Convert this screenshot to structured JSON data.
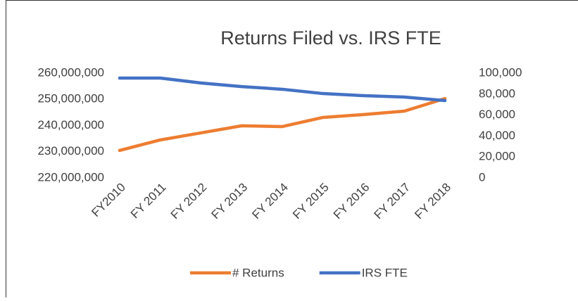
{
  "chart_data": {
    "type": "line",
    "title": "Returns Filed vs. IRS FTE",
    "categories": [
      "FY2010",
      "FY 2011",
      "FY 2012",
      "FY 2013",
      "FY 2014",
      "FY 2015",
      "FY 2016",
      "FY 2017",
      "FY 2018"
    ],
    "series": [
      {
        "name": "# Returns",
        "color": "#ed7d31",
        "values": [
          230500000,
          234500000,
          237200000,
          239900000,
          239600000,
          243100000,
          244200000,
          245500000,
          250300000
        ]
      },
      {
        "name": "IRS FTE",
        "color": "#4472c4",
        "axis": "y2",
        "values": [
          95300,
          95300,
          90600,
          87200,
          84600,
          80500,
          78500,
          77200,
          73800
        ]
      }
    ],
    "ylim": [
      220000000,
      260000000
    ],
    "yticks": [
      {
        "value": 220000000,
        "label": "220,000,000"
      },
      {
        "value": 230000000,
        "label": "230,000,000"
      },
      {
        "value": 240000000,
        "label": "240,000,000"
      },
      {
        "value": 250000000,
        "label": "250,000,000"
      },
      {
        "value": 260000000,
        "label": "260,000,000"
      }
    ],
    "y2lim": [
      0,
      100000
    ],
    "y2ticks": [
      0,
      {
        "value": 20000,
        "label": "20,000"
      },
      {
        "value": 40000,
        "label": "40,000"
      },
      {
        "value": 60000,
        "label": "60,000"
      },
      {
        "value": 80000,
        "label": "80,000"
      },
      {
        "value": 100000,
        "label": "100,000"
      }
    ],
    "grid": false,
    "legend": "bottom"
  }
}
